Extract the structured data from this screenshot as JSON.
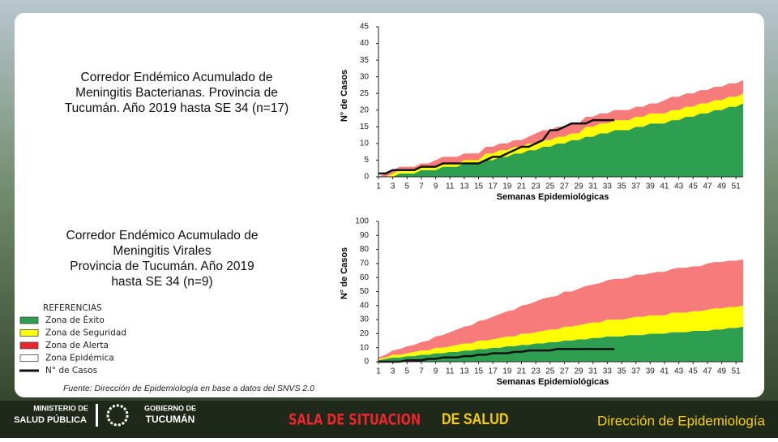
{
  "chart_data": [
    {
      "type": "area",
      "title": [
        "Corredor Endémico Acumulado de",
        "Meningitis Bacterianas.  Provincia de",
        "Tucumán.  Año 2019 hasta SE 34 (n=17)"
      ],
      "y_label": "N° de Casos",
      "x_label": "Semanas Epidemiológicas",
      "x": [
        1,
        2,
        3,
        4,
        5,
        6,
        7,
        8,
        9,
        10,
        11,
        12,
        13,
        14,
        15,
        16,
        17,
        18,
        19,
        20,
        21,
        22,
        23,
        24,
        25,
        26,
        27,
        28,
        29,
        30,
        31,
        32,
        33,
        34,
        35,
        36,
        37,
        38,
        39,
        40,
        41,
        42,
        43,
        44,
        45,
        46,
        47,
        48,
        49,
        50,
        51,
        52
      ],
      "xlim": [
        1,
        52
      ],
      "xticks": [
        1,
        3,
        5,
        7,
        9,
        11,
        13,
        15,
        17,
        19,
        21,
        23,
        25,
        27,
        29,
        31,
        33,
        35,
        37,
        39,
        41,
        43,
        45,
        47,
        49,
        51
      ],
      "ylim": [
        0,
        45
      ],
      "yticks": [
        0,
        5,
        10,
        15,
        20,
        25,
        30,
        35,
        40,
        45
      ],
      "series": [
        {
          "color": "#2e9e50",
          "values": [
            0,
            0,
            0,
            1,
            1,
            1,
            2,
            2,
            2,
            3,
            3,
            3,
            4,
            4,
            4,
            5,
            5,
            6,
            6,
            7,
            7,
            8,
            8,
            9,
            9,
            10,
            10,
            11,
            11,
            12,
            12,
            13,
            13,
            14,
            14,
            14,
            15,
            15,
            16,
            16,
            16,
            17,
            17,
            18,
            18,
            19,
            19,
            20,
            20,
            21,
            21,
            22
          ]
        },
        {
          "color": "#ffff00",
          "values": [
            0,
            0,
            1,
            1,
            1,
            1,
            1,
            1,
            1,
            1,
            1,
            1,
            1,
            1,
            1,
            2,
            2,
            2,
            2,
            2,
            2,
            2,
            2,
            2,
            2,
            2,
            2,
            2,
            2,
            3,
            3,
            3,
            3,
            3,
            3,
            3,
            3,
            3,
            3,
            3,
            3,
            3,
            3,
            3,
            3,
            3,
            3,
            3,
            3,
            3,
            3,
            3
          ]
        },
        {
          "color": "#f77b7b",
          "values": [
            0,
            1,
            1,
            1,
            1,
            1,
            1,
            1,
            2,
            2,
            2,
            2,
            2,
            2,
            2,
            2,
            2,
            2,
            2,
            2,
            2,
            2,
            3,
            3,
            3,
            3,
            3,
            3,
            3,
            3,
            3,
            3,
            3,
            3,
            3,
            3,
            3,
            3,
            3,
            3,
            4,
            4,
            4,
            4,
            4,
            4,
            4,
            4,
            4,
            4,
            4,
            4
          ]
        },
        {
          "type": "line",
          "color": "#111111",
          "values": [
            1,
            1,
            2,
            2,
            2,
            2,
            3,
            3,
            3,
            4,
            4,
            4,
            4,
            4,
            4,
            5,
            6,
            6,
            7,
            8,
            9,
            9,
            10,
            11,
            14,
            14,
            15,
            16,
            16,
            16,
            17,
            17,
            17,
            17,
            null,
            null,
            null,
            null,
            null,
            null,
            null,
            null,
            null,
            null,
            null,
            null,
            null,
            null,
            null,
            null,
            null,
            null
          ]
        }
      ]
    },
    {
      "type": "area",
      "title": [
        "Corredor Endémico Acumulado de",
        "Meningitis Virales",
        "Provincia de Tucumán. Año 2019",
        "hasta SE 34 (n=9)"
      ],
      "y_label": "N° de Casos",
      "x_label": "Semanas Epidemiológicas",
      "x": [
        1,
        2,
        3,
        4,
        5,
        6,
        7,
        8,
        9,
        10,
        11,
        12,
        13,
        14,
        15,
        16,
        17,
        18,
        19,
        20,
        21,
        22,
        23,
        24,
        25,
        26,
        27,
        28,
        29,
        30,
        31,
        32,
        33,
        34,
        35,
        36,
        37,
        38,
        39,
        40,
        41,
        42,
        43,
        44,
        45,
        46,
        47,
        48,
        49,
        50,
        51,
        52
      ],
      "xlim": [
        1,
        52
      ],
      "xticks": [
        1,
        3,
        5,
        7,
        9,
        11,
        13,
        15,
        17,
        19,
        21,
        23,
        25,
        27,
        29,
        31,
        33,
        35,
        37,
        39,
        41,
        43,
        45,
        47,
        49,
        51
      ],
      "ylim": [
        0,
        100
      ],
      "yticks": [
        0,
        10,
        20,
        30,
        40,
        50,
        60,
        70,
        80,
        90,
        100
      ],
      "series": [
        {
          "color": "#2e9e50",
          "values": [
            1,
            2,
            3,
            3,
            4,
            4,
            5,
            5,
            6,
            6,
            7,
            7,
            8,
            8,
            9,
            9,
            10,
            10,
            11,
            11,
            12,
            12,
            13,
            13,
            14,
            14,
            15,
            15,
            16,
            16,
            17,
            17,
            18,
            18,
            18,
            19,
            19,
            19,
            20,
            20,
            20,
            21,
            21,
            21,
            22,
            22,
            22,
            23,
            23,
            24,
            24,
            25
          ]
        },
        {
          "color": "#ffff00",
          "values": [
            1,
            1,
            2,
            2,
            2,
            3,
            3,
            3,
            4,
            4,
            4,
            5,
            5,
            5,
            6,
            6,
            6,
            7,
            7,
            7,
            8,
            8,
            8,
            9,
            9,
            9,
            10,
            10,
            10,
            11,
            11,
            11,
            12,
            12,
            12,
            12,
            13,
            13,
            13,
            13,
            13,
            14,
            14,
            14,
            14,
            14,
            15,
            15,
            15,
            15,
            15,
            15
          ]
        },
        {
          "color": "#f77b7b",
          "values": [
            1,
            2,
            3,
            4,
            5,
            5,
            6,
            7,
            8,
            9,
            10,
            11,
            12,
            13,
            14,
            15,
            16,
            17,
            18,
            19,
            20,
            21,
            22,
            23,
            23,
            24,
            25,
            25,
            26,
            27,
            27,
            28,
            28,
            29,
            29,
            29,
            30,
            30,
            30,
            31,
            31,
            31,
            32,
            32,
            32,
            32,
            33,
            33,
            33,
            33,
            33,
            33
          ]
        },
        {
          "type": "line",
          "color": "#111111",
          "values": [
            0,
            0,
            0,
            0,
            1,
            1,
            1,
            2,
            2,
            3,
            3,
            3,
            4,
            4,
            5,
            5,
            6,
            6,
            6,
            7,
            7,
            8,
            8,
            8,
            8,
            9,
            9,
            9,
            9,
            9,
            9,
            9,
            9,
            9,
            null,
            null,
            null,
            null,
            null,
            null,
            null,
            null,
            null,
            null,
            null,
            null,
            null,
            null,
            null,
            null,
            null,
            null
          ]
        }
      ]
    }
  ],
  "legend": {
    "title": "REFERENCIAS",
    "items": [
      {
        "label": "Zona de Éxito",
        "color": "#2e9e50"
      },
      {
        "label": "Zona de Seguridad",
        "color": "#ffff00"
      },
      {
        "label": "Zona de Alerta",
        "color": "#e8262c"
      },
      {
        "label": "Zona Epidémica",
        "color": "#ffffff"
      },
      {
        "label": "N° de Casos",
        "color": "#111111"
      }
    ]
  },
  "source": "Fuente: Dirección de Epidemiología en base a datos del SNVS 2.0",
  "footer": {
    "ministry": [
      "MINISTERIO DE",
      "SALUD PÚBLICA"
    ],
    "government": [
      "GOBIERNO DE",
      "TUCUMÁN"
    ],
    "center_a": "SALA DE SITUACION",
    "center_b": "DE SALUD",
    "right": "Dirección de Epidemiología"
  }
}
